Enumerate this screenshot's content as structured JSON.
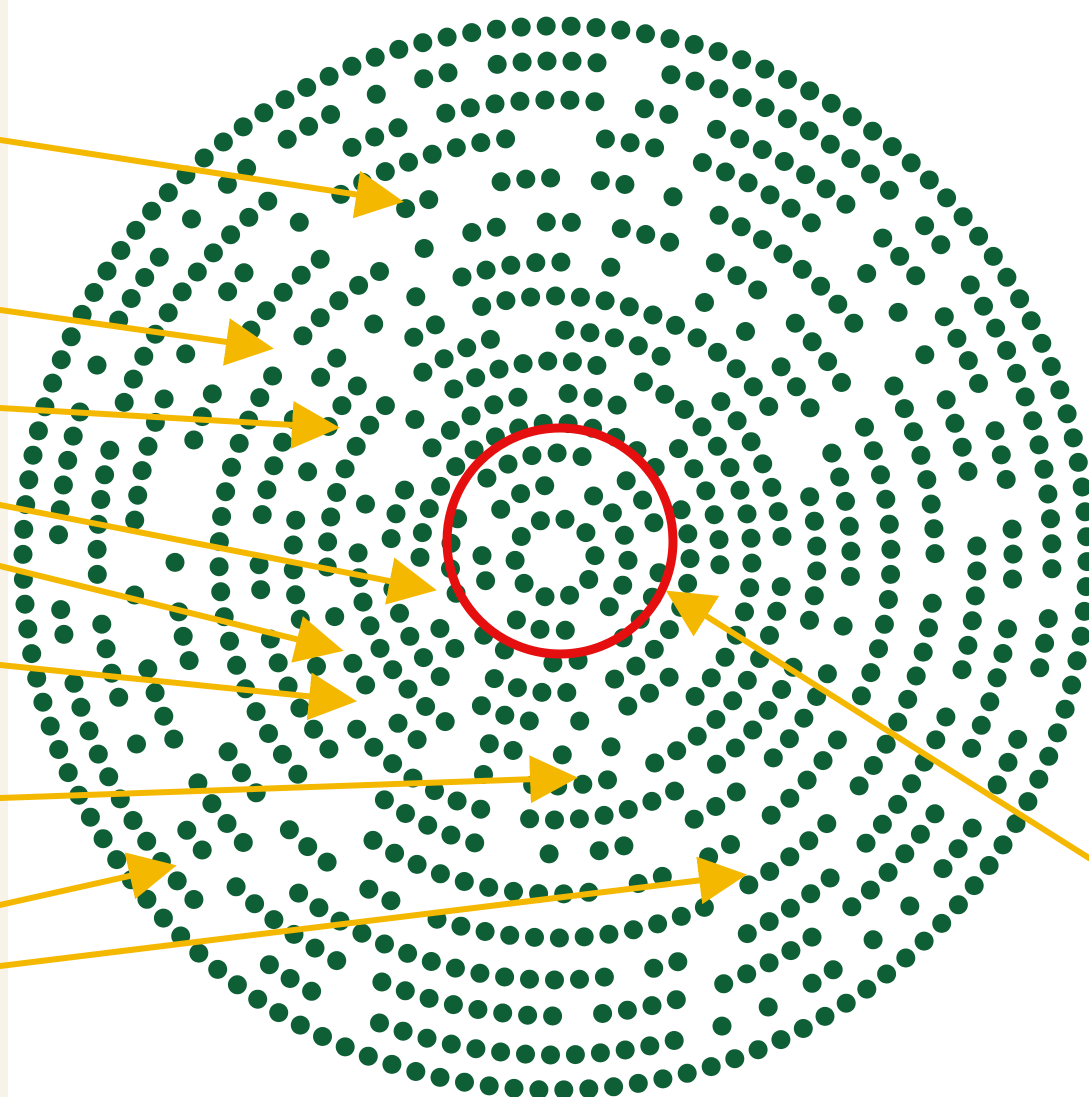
{
  "diagram": {
    "type": "concentric-dot-rings",
    "ring_count": 12,
    "colors": {
      "dots": "#0e5e36",
      "arrows": "#f5b800",
      "highlight_circle": "#e60f0f",
      "background": "#ffffff",
      "left_strip": "#f7f3e9"
    },
    "arrow_count": 10,
    "highlighted_region": "center-rings"
  }
}
